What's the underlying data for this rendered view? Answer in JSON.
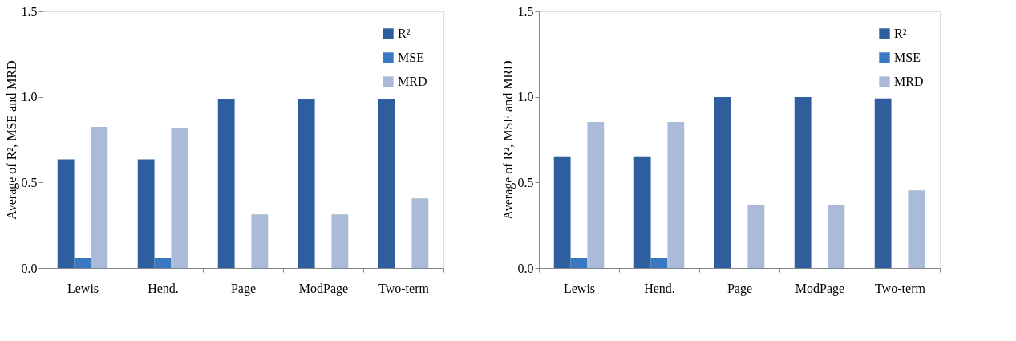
{
  "chart_data": [
    {
      "type": "bar",
      "ylabel": "Average of R², MSE and MRD",
      "categories": [
        "Lewis",
        "Hend.",
        "Page",
        "ModPage",
        "Two-term"
      ],
      "series": [
        {
          "name": "R²",
          "color": "#2e5e9e",
          "values": [
            0.635,
            0.635,
            0.989,
            0.989,
            0.984
          ]
        },
        {
          "name": "MSE",
          "color": "#3a78c4",
          "values": [
            0.059,
            0.059,
            0,
            0,
            0
          ]
        },
        {
          "name": "MRD",
          "color": "#a9bbd9",
          "values": [
            0.825,
            0.818,
            0.313,
            0.313,
            0.407
          ]
        }
      ],
      "ylim": [
        0,
        1.5
      ],
      "yticks": [
        {
          "value": 0,
          "label": "0.0"
        },
        {
          "value": 0.5,
          "label": "0.5"
        },
        {
          "value": 1,
          "label": "1.0"
        },
        {
          "value": 1.5,
          "label": "1.5"
        }
      ],
      "grid": false,
      "legend": "top right"
    },
    {
      "type": "bar",
      "ylabel": "Average of R², MSE and MRD",
      "categories": [
        "Lewis",
        "Hend.",
        "Page",
        "ModPage",
        "Two-term"
      ],
      "series": [
        {
          "name": "R²",
          "color": "#2e5e9e",
          "values": [
            0.648,
            0.648,
            0.998,
            0.998,
            0.99
          ]
        },
        {
          "name": "MSE",
          "color": "#3a78c4",
          "values": [
            0.06,
            0.06,
            0,
            0,
            0
          ]
        },
        {
          "name": "MRD",
          "color": "#a9bbd9",
          "values": [
            0.853,
            0.853,
            0.366,
            0.366,
            0.453
          ]
        }
      ],
      "ylim": [
        0,
        1.5
      ],
      "yticks": [
        {
          "value": 0,
          "label": "0.0"
        },
        {
          "value": 0.5,
          "label": "0.5"
        },
        {
          "value": 1,
          "label": "1.0"
        },
        {
          "value": 1.5,
          "label": "1.5"
        }
      ],
      "grid": false,
      "legend": "top right"
    }
  ]
}
